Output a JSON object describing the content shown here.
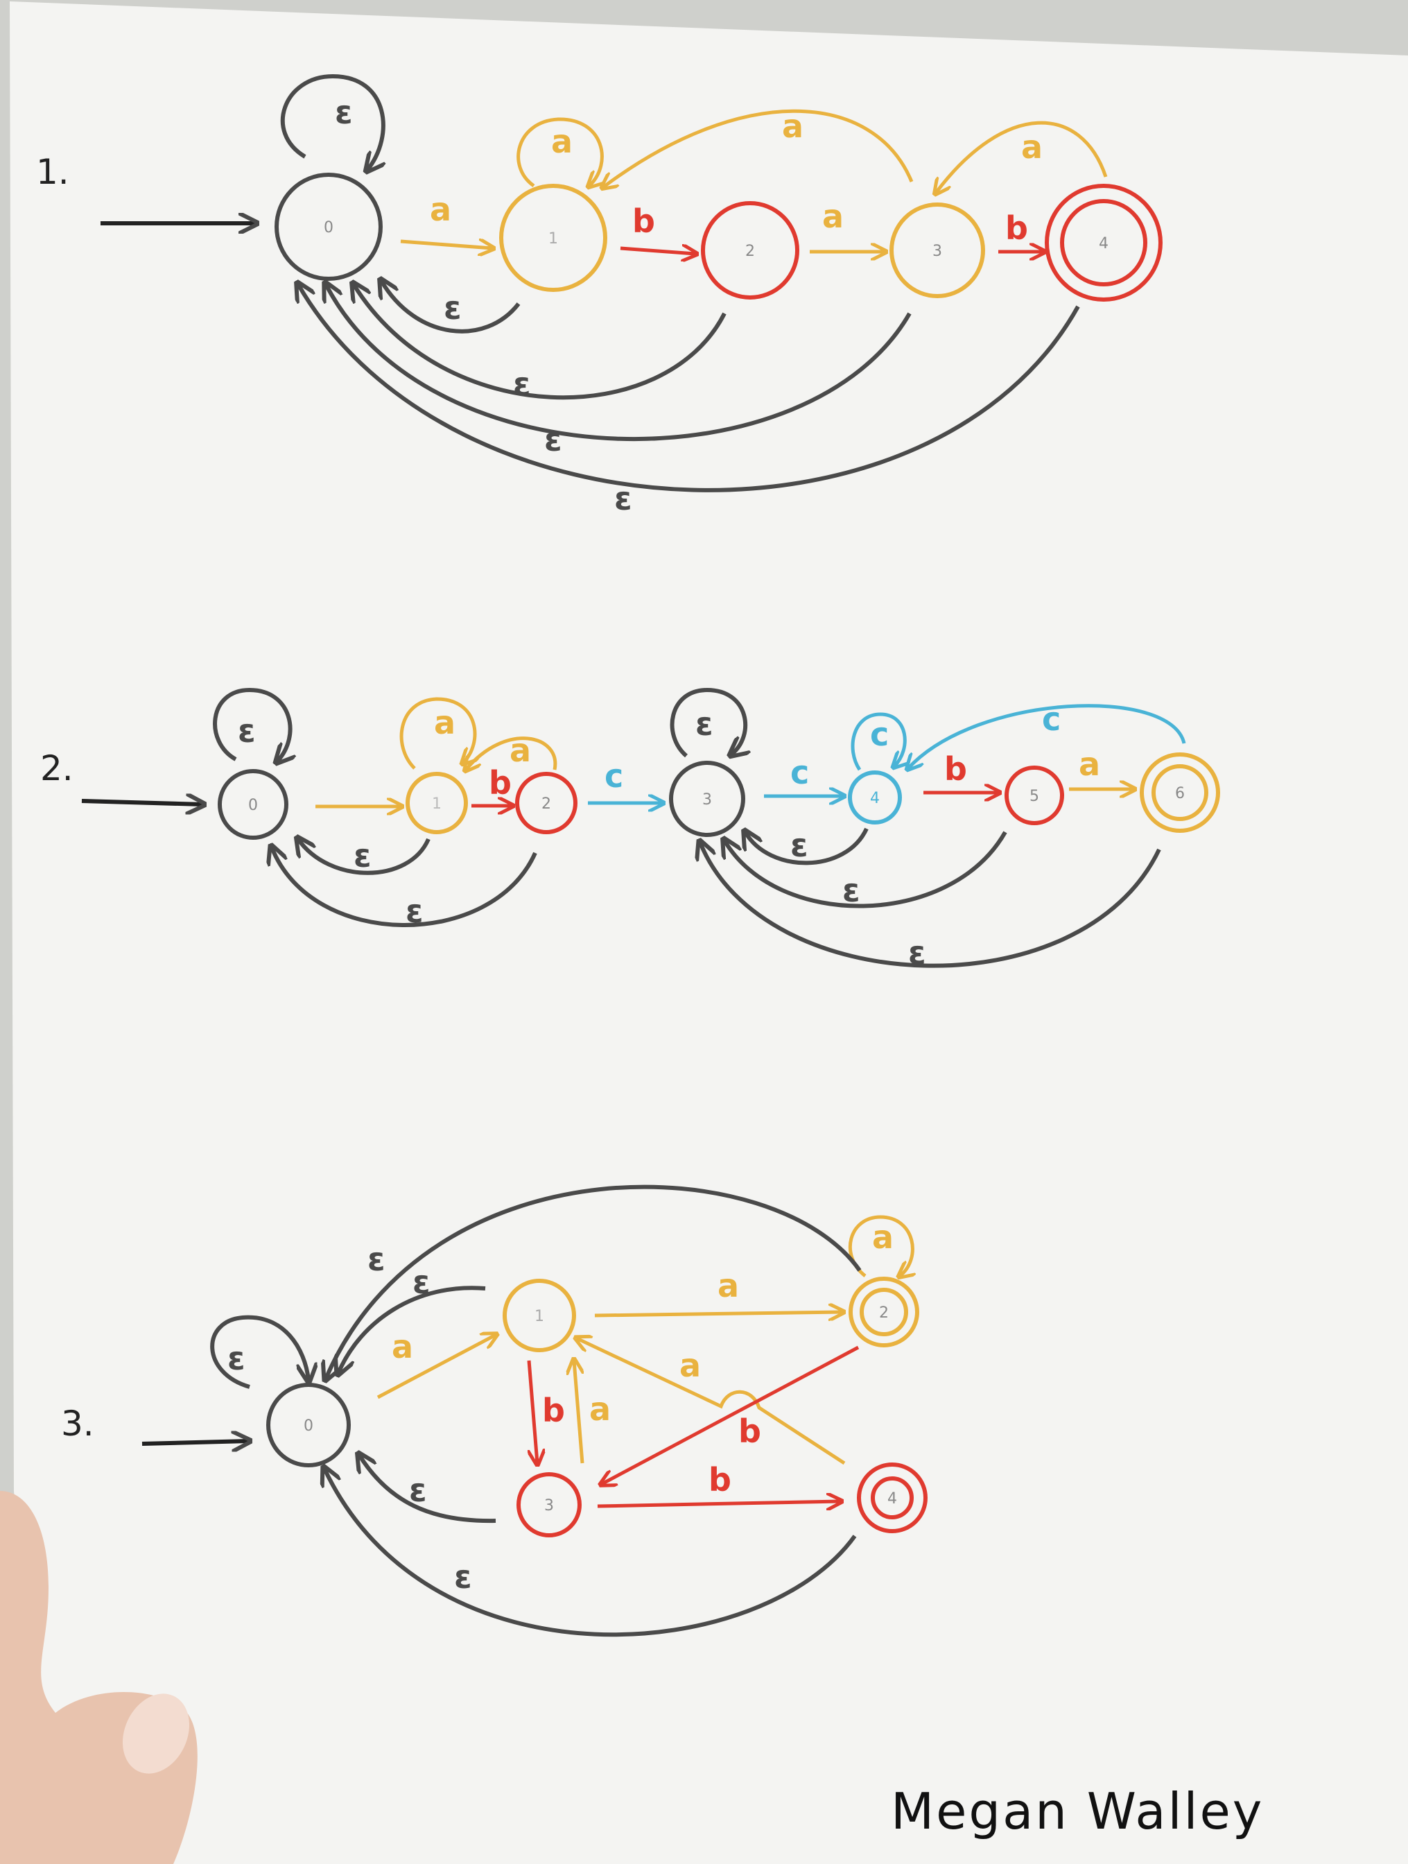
{
  "colors": {
    "black": "#4a4a4a",
    "yellow": "#e9b23f",
    "red": "#e03a2f",
    "blue": "#49b3d6",
    "paper": "#f4f4f2",
    "skin": "#e8c3ae"
  },
  "signature": "Megan Walley",
  "diagrams": [
    {
      "number": "1.",
      "nodes": [
        {
          "label": "0",
          "color": "black"
        },
        {
          "label": "1",
          "color": "yellow"
        },
        {
          "label": "2",
          "color": "red"
        },
        {
          "label": "3",
          "color": "yellow"
        },
        {
          "label": "4",
          "color": "red",
          "accepting": true
        }
      ],
      "edges": [
        {
          "from": "start",
          "to": "0",
          "label": "",
          "color": "black"
        },
        {
          "from": "0",
          "to": "0",
          "label": "ε",
          "color": "black"
        },
        {
          "from": "0",
          "to": "1",
          "label": "a",
          "color": "yellow"
        },
        {
          "from": "1",
          "to": "1",
          "label": "a",
          "color": "yellow"
        },
        {
          "from": "1",
          "to": "2",
          "label": "b",
          "color": "red"
        },
        {
          "from": "2",
          "to": "3",
          "label": "a",
          "color": "yellow"
        },
        {
          "from": "3",
          "to": "1",
          "label": "a",
          "color": "yellow"
        },
        {
          "from": "3",
          "to": "4",
          "label": "b",
          "color": "red"
        },
        {
          "from": "4",
          "to": "3",
          "label": "a",
          "color": "yellow"
        },
        {
          "from": "1",
          "to": "0",
          "label": "ε",
          "color": "black"
        },
        {
          "from": "2",
          "to": "0",
          "label": "ε",
          "color": "black"
        },
        {
          "from": "3",
          "to": "0",
          "label": "ε",
          "color": "black"
        },
        {
          "from": "4",
          "to": "0",
          "label": "ε",
          "color": "black"
        }
      ]
    },
    {
      "number": "2.",
      "nodes": [
        {
          "label": "0",
          "color": "black"
        },
        {
          "label": "1",
          "color": "yellow"
        },
        {
          "label": "2",
          "color": "red"
        },
        {
          "label": "3",
          "color": "black"
        },
        {
          "label": "4",
          "color": "blue"
        },
        {
          "label": "5",
          "color": "red"
        },
        {
          "label": "6",
          "color": "yellow",
          "accepting": true
        }
      ],
      "edges": [
        {
          "from": "start",
          "to": "0",
          "label": "",
          "color": "black"
        },
        {
          "from": "0",
          "to": "0",
          "label": "ε",
          "color": "black"
        },
        {
          "from": "0",
          "to": "1",
          "label": "",
          "color": "yellow"
        },
        {
          "from": "1",
          "to": "1",
          "label": "a",
          "color": "yellow"
        },
        {
          "from": "1",
          "to": "2",
          "label": "b",
          "color": "red"
        },
        {
          "from": "2",
          "to": "1",
          "label": "a",
          "color": "yellow"
        },
        {
          "from": "2",
          "to": "3",
          "label": "c",
          "color": "blue"
        },
        {
          "from": "3",
          "to": "3",
          "label": "ε",
          "color": "black"
        },
        {
          "from": "3",
          "to": "4",
          "label": "c",
          "color": "blue"
        },
        {
          "from": "4",
          "to": "4",
          "label": "c",
          "color": "blue"
        },
        {
          "from": "4",
          "to": "5",
          "label": "b",
          "color": "red"
        },
        {
          "from": "5",
          "to": "6",
          "label": "a",
          "color": "yellow"
        },
        {
          "from": "6",
          "to": "4",
          "label": "c",
          "color": "blue"
        },
        {
          "from": "1",
          "to": "0",
          "label": "ε",
          "color": "black"
        },
        {
          "from": "2",
          "to": "0",
          "label": "ε",
          "color": "black"
        },
        {
          "from": "4",
          "to": "3",
          "label": "ε",
          "color": "black"
        },
        {
          "from": "5",
          "to": "3",
          "label": "ε",
          "color": "black"
        },
        {
          "from": "6",
          "to": "3",
          "label": "ε",
          "color": "black"
        }
      ]
    },
    {
      "number": "3.",
      "nodes": [
        {
          "label": "0",
          "color": "black"
        },
        {
          "label": "1",
          "color": "yellow"
        },
        {
          "label": "2",
          "color": "yellow",
          "accepting": true
        },
        {
          "label": "3",
          "color": "red"
        },
        {
          "label": "4",
          "color": "red",
          "accepting": true
        }
      ],
      "edges": [
        {
          "from": "start",
          "to": "0",
          "label": "",
          "color": "black"
        },
        {
          "from": "0",
          "to": "0",
          "label": "ε",
          "color": "black"
        },
        {
          "from": "0",
          "to": "1",
          "label": "a",
          "color": "yellow"
        },
        {
          "from": "1",
          "to": "2",
          "label": "a",
          "color": "yellow"
        },
        {
          "from": "2",
          "to": "2",
          "label": "a",
          "color": "yellow"
        },
        {
          "from": "1",
          "to": "3",
          "label": "b",
          "color": "red"
        },
        {
          "from": "3",
          "to": "1",
          "label": "a",
          "color": "yellow"
        },
        {
          "from": "4",
          "to": "1",
          "label": "a",
          "color": "yellow"
        },
        {
          "from": "2",
          "to": "3",
          "label": "b",
          "color": "red"
        },
        {
          "from": "3",
          "to": "4",
          "label": "b",
          "color": "red"
        },
        {
          "from": "1",
          "to": "0",
          "label": "ε",
          "color": "black"
        },
        {
          "from": "2",
          "to": "0",
          "label": "ε",
          "color": "black"
        },
        {
          "from": "3",
          "to": "0",
          "label": "ε",
          "color": "black"
        },
        {
          "from": "4",
          "to": "0",
          "label": "ε",
          "color": "black"
        }
      ]
    }
  ]
}
